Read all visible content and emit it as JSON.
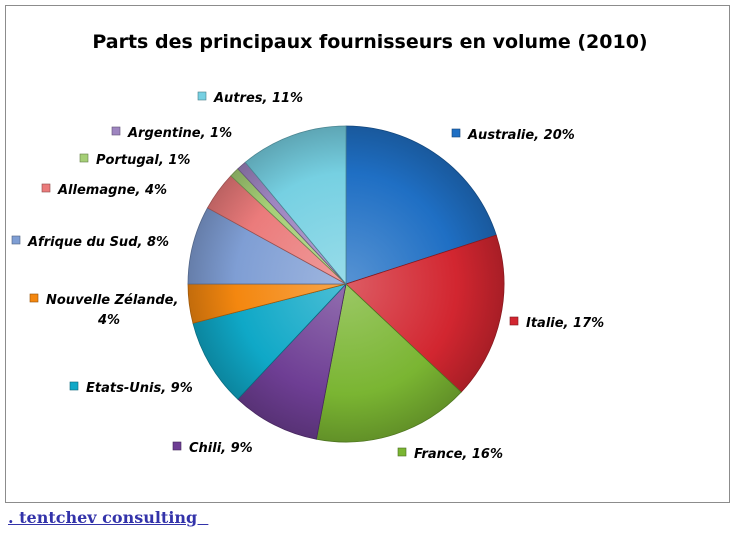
{
  "footer": {
    "link_text": ". tentchev consulting  "
  },
  "chart_data": {
    "type": "pie",
    "title": "Parts des principaux fournisseurs en volume (2010)",
    "slices": [
      {
        "label": "Australie",
        "display": "Australie, 20%",
        "value": 20,
        "color": "#1f6fc4"
      },
      {
        "label": "Italie",
        "display": "Italie, 17%",
        "value": 17,
        "color": "#d22630"
      },
      {
        "label": "France",
        "display": "France, 16%",
        "value": 16,
        "color": "#7ab532"
      },
      {
        "label": "Chili",
        "display": "Chili, 9%",
        "value": 9,
        "color": "#6e3e94"
      },
      {
        "label": "Etats-Unis",
        "display": "Etats-Unis, 9%",
        "value": 9,
        "color": "#0fa8c7"
      },
      {
        "label": "Nouvelle Zélande",
        "display": "Nouvelle Zélande, 4%",
        "value": 4,
        "color": "#f4870f"
      },
      {
        "label": "Afrique du Sud",
        "display": "Afrique du Sud, 8%",
        "value": 8,
        "color": "#7f9ed4"
      },
      {
        "label": "Allemagne",
        "display": "Allemagne, 4%",
        "value": 4,
        "color": "#eb7b7b"
      },
      {
        "label": "Portugal",
        "display": "Portugal, 1%",
        "value": 1,
        "color": "#a5cf76"
      },
      {
        "label": "Argentine",
        "display": "Argentine, 1%",
        "value": 1,
        "color": "#9e85c0"
      },
      {
        "label": "Autres",
        "display": "Autres, 11%",
        "value": 11,
        "color": "#76d0e2"
      }
    ]
  }
}
